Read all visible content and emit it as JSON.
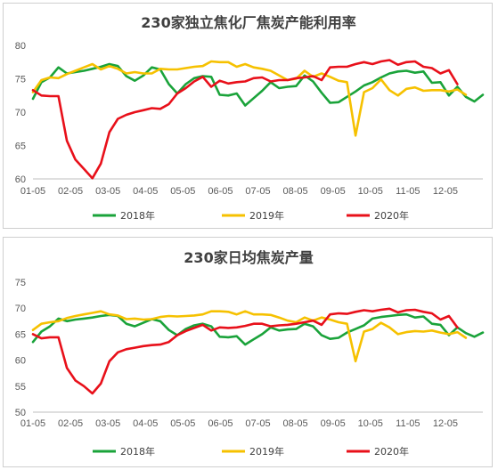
{
  "chart_data": [
    {
      "type": "line",
      "title": "230家独立焦化厂焦炭产能利用率",
      "x_ticks": [
        "01-05",
        "02-05",
        "03-05",
        "04-05",
        "05-05",
        "06-05",
        "07-05",
        "08-05",
        "09-05",
        "10-05",
        "11-05",
        "12-05"
      ],
      "ylim": [
        60,
        80
      ],
      "y_ticks": [
        60,
        65,
        70,
        75,
        80
      ],
      "grid": false,
      "legend_position": "bottom",
      "series": [
        {
          "name": "2018年",
          "color": "#1aa33a",
          "values": [
            72,
            74.5,
            75.2,
            76.7,
            75.8,
            76,
            76.2,
            76.5,
            76.8,
            77.2,
            76.9,
            75.4,
            74.7,
            75.5,
            76.7,
            76.4,
            74.2,
            72.8,
            74.2,
            75.1,
            75.4,
            75.3,
            72.6,
            72.5,
            72.8,
            71,
            72.1,
            73.2,
            74.5,
            73.6,
            73.8,
            73.9,
            75.5,
            74.6,
            72.9,
            71.4,
            71.5,
            72.3,
            73.1,
            74,
            74.5,
            75.2,
            75.8,
            76.1,
            76.2,
            75.9,
            76.1,
            74.4,
            74.5,
            72.5,
            73.8,
            72.3,
            71.6,
            72.6
          ]
        },
        {
          "name": "2019年",
          "color": "#f6c100",
          "values": [
            73,
            74.8,
            75.2,
            75.1,
            75.7,
            76.2,
            76.7,
            77.2,
            76.4,
            76.9,
            76.5,
            75.8,
            76,
            75.8,
            75.8,
            76.5,
            76.4,
            76.4,
            76.6,
            76.8,
            76.9,
            77.6,
            77.5,
            77.5,
            76.8,
            77.2,
            76.7,
            76.5,
            76.2,
            75.5,
            74.8,
            75,
            76.2,
            75.3,
            75.8,
            75.3,
            74.7,
            74.5,
            66.5,
            73,
            73.6,
            74.9,
            73.3,
            72.5,
            73.5,
            73.7,
            73.2,
            73.3,
            73.3,
            73.1,
            73.4,
            72.6
          ]
        },
        {
          "name": "2020年",
          "color": "#e8101a",
          "values": [
            73.3,
            72.5,
            72.4,
            72.4,
            65.7,
            62.9,
            61.5,
            60.1,
            62.3,
            67,
            69,
            69.6,
            70,
            70.3,
            70.6,
            70.5,
            71.2,
            72.8,
            73.6,
            74.6,
            75.3,
            73.8,
            74.7,
            74.3,
            74.5,
            74.6,
            75.1,
            75.2,
            74.6,
            74.8,
            74.8,
            75.1,
            75.2,
            75.4,
            74.8,
            76.7,
            76.8,
            76.8,
            77.2,
            77.5,
            77.2,
            77.6,
            77.8,
            77.1,
            77.5,
            77.6,
            76.8,
            76.6,
            75.8,
            76.3,
            74.2
          ]
        }
      ]
    },
    {
      "type": "line",
      "title": "230家日均焦炭产量",
      "x_ticks": [
        "01-05",
        "02-05",
        "03-05",
        "04-05",
        "05-05",
        "06-05",
        "07-05",
        "08-05",
        "09-05",
        "10-05",
        "11-05",
        "12-05"
      ],
      "ylim": [
        50,
        75
      ],
      "y_ticks": [
        50,
        55,
        60,
        65,
        70,
        75
      ],
      "grid": false,
      "legend_position": "bottom",
      "series": [
        {
          "name": "2018年",
          "color": "#1aa33a",
          "values": [
            63.5,
            65.5,
            66.5,
            68,
            67.5,
            67.8,
            68,
            68.2,
            68.5,
            68.7,
            68.5,
            67,
            66.5,
            67.2,
            67.9,
            67.5,
            65.8,
            64.8,
            66,
            66.7,
            67,
            66.5,
            64.5,
            64.4,
            64.6,
            63,
            64,
            65,
            66.3,
            65.7,
            65.9,
            66,
            67,
            66.5,
            64.8,
            64.1,
            64.3,
            65.3,
            66,
            66.7,
            68,
            68.3,
            68.5,
            68.7,
            68.8,
            68.2,
            68.4,
            67,
            66.8,
            64.8,
            66.3,
            65.2,
            64.5,
            65.3
          ]
        },
        {
          "name": "2019年",
          "color": "#f6c100",
          "values": [
            65.8,
            67,
            67.3,
            67.5,
            68.1,
            68.5,
            68.8,
            69.1,
            69.4,
            68.8,
            68.6,
            67.9,
            68,
            67.8,
            67.9,
            68.3,
            68.5,
            68.4,
            68.5,
            68.6,
            68.8,
            69.4,
            69.4,
            69.3,
            68.8,
            69.4,
            68.8,
            68.8,
            68.7,
            68.2,
            67.6,
            67.3,
            68.2,
            67.6,
            68.2,
            67.8,
            67.3,
            67,
            59.8,
            65.5,
            66,
            67.2,
            66.3,
            65,
            65.4,
            65.6,
            65.5,
            65.7,
            65.3,
            65,
            65.4,
            64.3
          ]
        },
        {
          "name": "2020年",
          "color": "#e8101a",
          "values": [
            65,
            64.2,
            64.4,
            64.4,
            58.5,
            56.1,
            55,
            53.6,
            55.5,
            59.8,
            61.5,
            62.1,
            62.4,
            62.7,
            62.9,
            63,
            63.5,
            64.8,
            65.6,
            66.2,
            66.8,
            65.7,
            66.3,
            66.2,
            66.3,
            66.6,
            67,
            67,
            66.5,
            66.7,
            66.8,
            67,
            67.3,
            67.6,
            66.8,
            68.8,
            69,
            68.9,
            69.3,
            69.6,
            69.4,
            69.7,
            69.9,
            69.2,
            69.6,
            69.7,
            69.3,
            69,
            67.8,
            68.5,
            66.3
          ]
        }
      ]
    }
  ]
}
